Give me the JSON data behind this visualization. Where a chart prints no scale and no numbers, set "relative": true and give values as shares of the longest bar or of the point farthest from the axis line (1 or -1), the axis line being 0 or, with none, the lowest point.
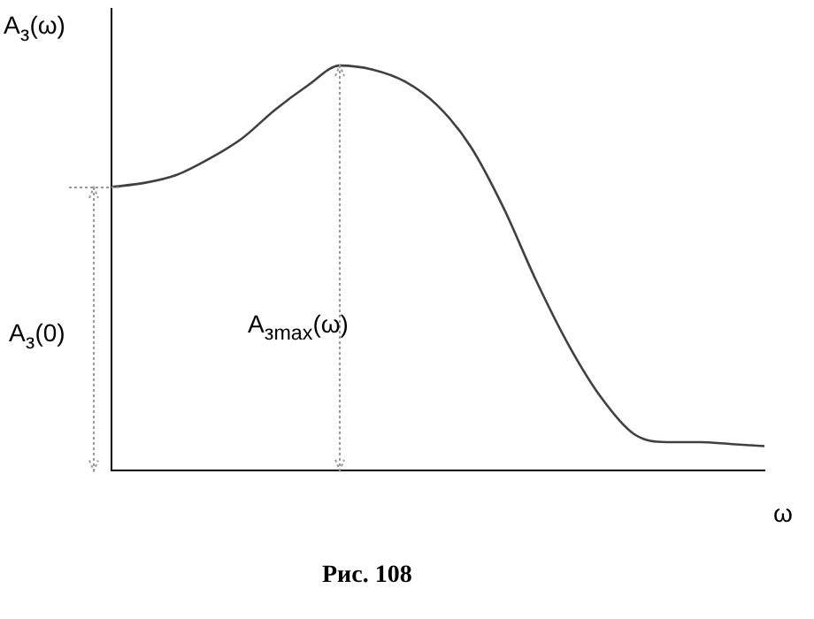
{
  "chart_data": {
    "type": "line",
    "relative": true,
    "xlabel": "ω",
    "ylabel": "A$_{з}$(ω)",
    "categories": [
      null,
      null,
      null,
      null,
      null,
      null,
      null,
      null,
      null,
      null,
      null,
      null,
      null,
      null,
      null,
      null,
      null,
      null,
      null,
      null,
      null
    ],
    "series": [
      {
        "color": "#404040",
        "values": [
          0.7,
          0.71,
          0.73,
          0.77,
          0.82,
          0.89,
          0.95,
          1,
          0.99,
          0.96,
          0.9,
          0.8,
          0.65,
          0.47,
          0.31,
          0.18,
          0.09,
          0.07,
          0.07,
          0.065,
          0.06
        ]
      }
    ],
    "annotations": [
      "A$_{з}$(0)",
      "A$_{зmax}$(ω)",
      "Рис. 108"
    ],
    "grid": false,
    "legend": false,
    "marker": "none",
    "line_style": "solid"
  }
}
